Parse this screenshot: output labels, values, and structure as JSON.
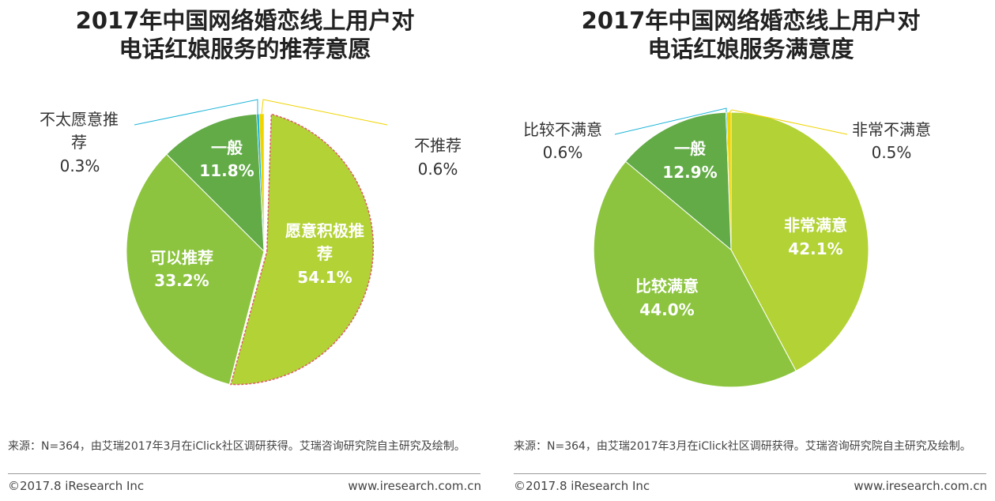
{
  "panels": [
    {
      "title_line1": "2017年中国网络婚恋线上用户对",
      "title_line2": "电话红娘服务的推荐意愿",
      "source": "来源：N=364，由艾瑞2017年3月在iClick社区调研获得。艾瑞咨询研究院自主研究及绘制。",
      "copyright": "©2017.8 iResearch Inc",
      "site": "www.iresearch.com.cn"
    },
    {
      "title_line1": "2017年中国网络婚恋线上用户对",
      "title_line2": "电话红娘服务满意度",
      "source": "来源：N=364，由艾瑞2017年3月在iClick社区调研获得。艾瑞咨询研究院自主研究及绘制。",
      "copyright": "©2017.8 iResearch Inc",
      "site": "www.iresearch.com.cn"
    }
  ],
  "chart_data": [
    {
      "type": "pie",
      "title": "2017年中国网络婚恋线上用户对电话红娘服务的推荐意愿",
      "slices": [
        {
          "label": "愿意积极推荐",
          "value": 54.1,
          "display": "54.1%",
          "color": "#b2d235",
          "exploded": true
        },
        {
          "label": "可以推荐",
          "value": 33.2,
          "display": "33.2%",
          "color": "#8cc43f"
        },
        {
          "label": "一般",
          "value": 11.8,
          "display": "11.8%",
          "color": "#62ab46"
        },
        {
          "label": "不太愿意推荐",
          "value": 0.3,
          "display": "0.3%",
          "color": "#1fb5d8"
        },
        {
          "label": "不推荐",
          "value": 0.6,
          "display": "0.6%",
          "color": "#f0d400"
        }
      ]
    },
    {
      "type": "pie",
      "title": "2017年中国网络婚恋线上用户对电话红娘服务满意度",
      "slices": [
        {
          "label": "非常满意",
          "value": 42.1,
          "display": "42.1%",
          "color": "#b2d235"
        },
        {
          "label": "比较满意",
          "value": 44.0,
          "display": "44.0%",
          "color": "#8cc43f"
        },
        {
          "label": "一般",
          "value": 12.9,
          "display": "12.9%",
          "color": "#62ab46"
        },
        {
          "label": "比较不满意",
          "value": 0.6,
          "display": "0.6%",
          "color": "#1fb5d8"
        },
        {
          "label": "非常不满意",
          "value": 0.5,
          "display": "0.5%",
          "color": "#f0d400"
        }
      ]
    }
  ]
}
